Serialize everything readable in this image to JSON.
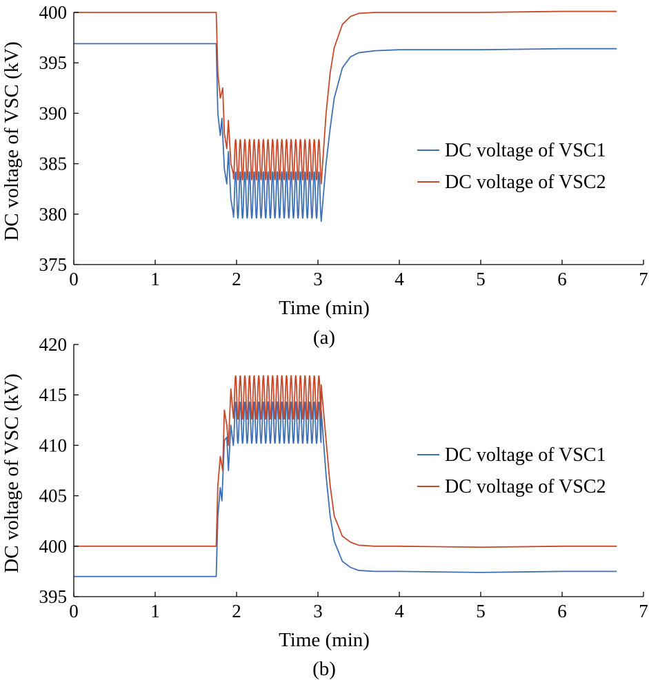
{
  "colors": {
    "vsc1": "#3e6fb3",
    "vsc2": "#c8482a"
  },
  "chart_data": [
    {
      "type": "line",
      "panel_label": "(a)",
      "xlabel": "Time (min)",
      "ylabel": "DC voltage of VSC (kV)",
      "xlim": [
        0,
        7
      ],
      "ylim": [
        375,
        400
      ],
      "x_ticks": [
        "0",
        "1",
        "2",
        "3",
        "4",
        "5",
        "6",
        "7"
      ],
      "y_ticks": [
        "375",
        "380",
        "385",
        "390",
        "395",
        "400"
      ],
      "legend_position": "center-right",
      "series": [
        {
          "name": "DC voltage of VSC1",
          "color": "#3e6fb3",
          "x": [
            0,
            1.75,
            1.77,
            1.8,
            1.82,
            1.85,
            1.88,
            1.9,
            1.93,
            1.96,
            3.04,
            3.1,
            3.15,
            3.2,
            3.3,
            3.4,
            3.5,
            3.7,
            4.0,
            5.0,
            6.0,
            6.67
          ],
          "y": [
            396.9,
            396.9,
            390.0,
            387.8,
            389.5,
            384.5,
            383.0,
            386.2,
            381.5,
            380.0,
            379.3,
            385.0,
            388.5,
            391.5,
            394.5,
            395.6,
            396.0,
            396.2,
            396.3,
            396.3,
            396.4,
            396.4
          ],
          "oscillation": {
            "from": 1.96,
            "to": 3.04,
            "peak": 384.2,
            "trough": 379.6,
            "cycles": 19
          }
        },
        {
          "name": "DC voltage of VSC2",
          "color": "#c8482a",
          "x": [
            0,
            1.75,
            1.77,
            1.8,
            1.83,
            1.85,
            1.88,
            1.9,
            1.93,
            1.96,
            3.04,
            3.1,
            3.15,
            3.2,
            3.3,
            3.4,
            3.5,
            3.7,
            4.0,
            5.0,
            6.0,
            6.67
          ],
          "y": [
            400.0,
            400.0,
            394.0,
            391.5,
            392.5,
            388.0,
            386.5,
            389.3,
            385.0,
            384.0,
            383.0,
            390.0,
            394.0,
            396.5,
            398.8,
            399.6,
            399.9,
            400.0,
            400.0,
            400.0,
            400.1,
            400.1
          ],
          "oscillation": {
            "from": 1.96,
            "to": 3.04,
            "peak": 387.4,
            "trough": 383.4,
            "cycles": 19
          }
        }
      ]
    },
    {
      "type": "line",
      "panel_label": "(b)",
      "xlabel": "Time (min)",
      "ylabel": "DC voltage of VSC (kV)",
      "xlim": [
        0,
        7
      ],
      "ylim": [
        395,
        420
      ],
      "x_ticks": [
        "0",
        "1",
        "2",
        "3",
        "4",
        "5",
        "6",
        "7"
      ],
      "y_ticks": [
        "395",
        "400",
        "405",
        "410",
        "415",
        "420"
      ],
      "legend_position": "center-right",
      "series": [
        {
          "name": "DC voltage of VSC1",
          "color": "#3e6fb3",
          "x": [
            0,
            1.75,
            1.77,
            1.8,
            1.82,
            1.85,
            1.88,
            1.9,
            1.93,
            1.96,
            3.04,
            3.1,
            3.15,
            3.2,
            3.3,
            3.4,
            3.5,
            3.7,
            4.0,
            5.0,
            6.0,
            6.67
          ],
          "y": [
            397.0,
            397.0,
            403.0,
            405.8,
            404.5,
            410.5,
            410.8,
            407.5,
            412.0,
            410.0,
            413.5,
            407.0,
            403.0,
            400.5,
            398.5,
            397.9,
            397.6,
            397.5,
            397.5,
            397.4,
            397.5,
            397.5
          ],
          "oscillation": {
            "from": 1.96,
            "to": 3.04,
            "peak": 414.3,
            "trough": 410.2,
            "cycles": 19
          }
        },
        {
          "name": "DC voltage of VSC2",
          "color": "#c8482a",
          "x": [
            0,
            1.75,
            1.77,
            1.8,
            1.83,
            1.85,
            1.88,
            1.9,
            1.93,
            1.96,
            3.04,
            3.1,
            3.15,
            3.2,
            3.3,
            3.4,
            3.5,
            3.7,
            4.0,
            5.0,
            6.0,
            6.67
          ],
          "y": [
            400.0,
            400.0,
            406.0,
            408.9,
            407.5,
            413.5,
            412.0,
            410.0,
            415.6,
            412.8,
            416.0,
            410.5,
            406.0,
            403.0,
            401.0,
            400.4,
            400.1,
            400.0,
            400.0,
            399.9,
            400.0,
            400.0
          ],
          "oscillation": {
            "from": 1.96,
            "to": 3.04,
            "peak": 416.9,
            "trough": 412.6,
            "cycles": 19
          }
        }
      ]
    }
  ]
}
